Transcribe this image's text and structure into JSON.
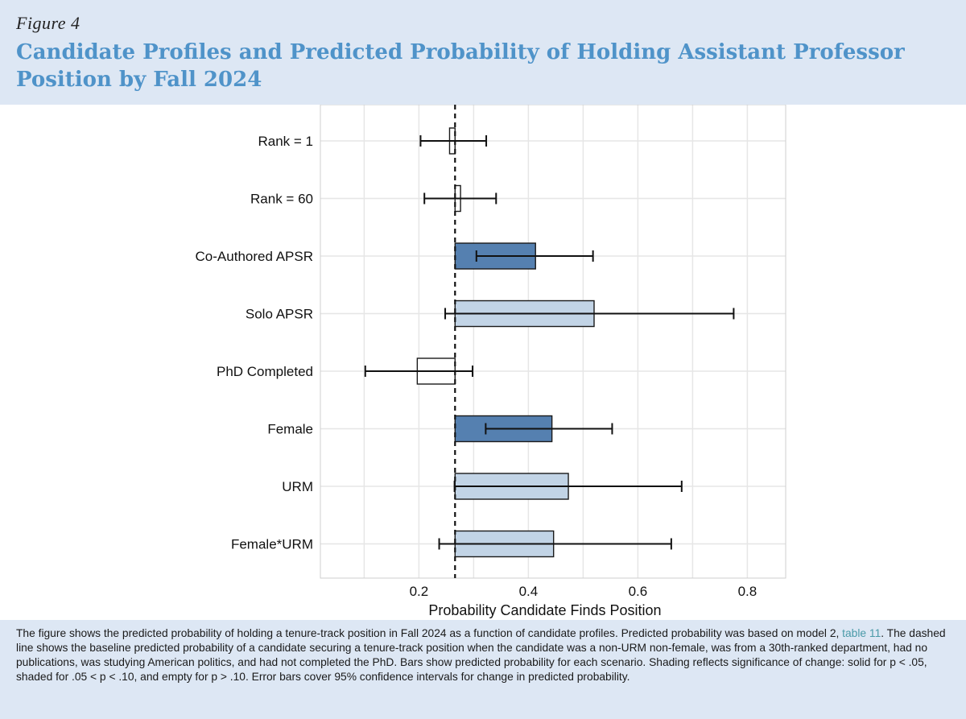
{
  "figure": {
    "label": "Figure 4",
    "title": "Candidate Profiles and Predicted Probability of Holding Assistant Professor Position by Fall 2024"
  },
  "caption": {
    "before_link": "The figure shows the predicted probability of holding a tenure-track position in Fall 2024 as a function of candidate profiles. Predicted probability was based on model 2, ",
    "link_text": "table 11",
    "after_link": ". The dashed line shows the baseline predicted probability of a candidate securing a tenure-track position when the candidate was a non-URM non-female, was from a 30th-ranked department, had no publications, was studying American politics, and had not completed the PhD. Bars show predicted probability for each scenario. Shading reflects significance of change: solid for p < .05, shaded for .05 < p < .10, and empty for p > .10. Error bars cover 95% confidence intervals for change in predicted probability."
  },
  "colors": {
    "solid": "#5580b0",
    "shaded": "#c2d4e6",
    "empty": "#ffffff",
    "outline": "#1a1a1a",
    "grid": "#e6e6e6"
  },
  "chart_data": {
    "type": "bar",
    "orientation": "horizontal",
    "xlabel": "Probability Candidate Finds Position",
    "ylabel": "",
    "xlim": [
      0.11,
      0.185
    ],
    "xlim_note": "",
    "x_range": [
      0.02,
      0.87
    ],
    "xticks": [
      0.2,
      0.4,
      0.6,
      0.8
    ],
    "xtick_labels": [
      "0.2",
      "0.4",
      "0.6",
      "0.8"
    ],
    "grid": true,
    "baseline": 0.266,
    "categories": [
      "Rank = 1",
      "Rank = 60",
      "Co-Authored APSR",
      "Solo APSR",
      "PhD Completed",
      "Female",
      "URM",
      "Female*URM"
    ],
    "values": [
      0.256,
      0.276,
      0.413,
      0.52,
      0.197,
      0.443,
      0.473,
      0.446
    ],
    "ci_low": [
      0.203,
      0.21,
      0.305,
      0.248,
      0.102,
      0.322,
      0.265,
      0.237
    ],
    "ci_high": [
      0.323,
      0.341,
      0.518,
      0.775,
      0.298,
      0.553,
      0.68,
      0.661
    ],
    "shading": [
      "empty",
      "empty",
      "solid",
      "shaded",
      "empty",
      "solid",
      "shaded",
      "shaded"
    ]
  }
}
